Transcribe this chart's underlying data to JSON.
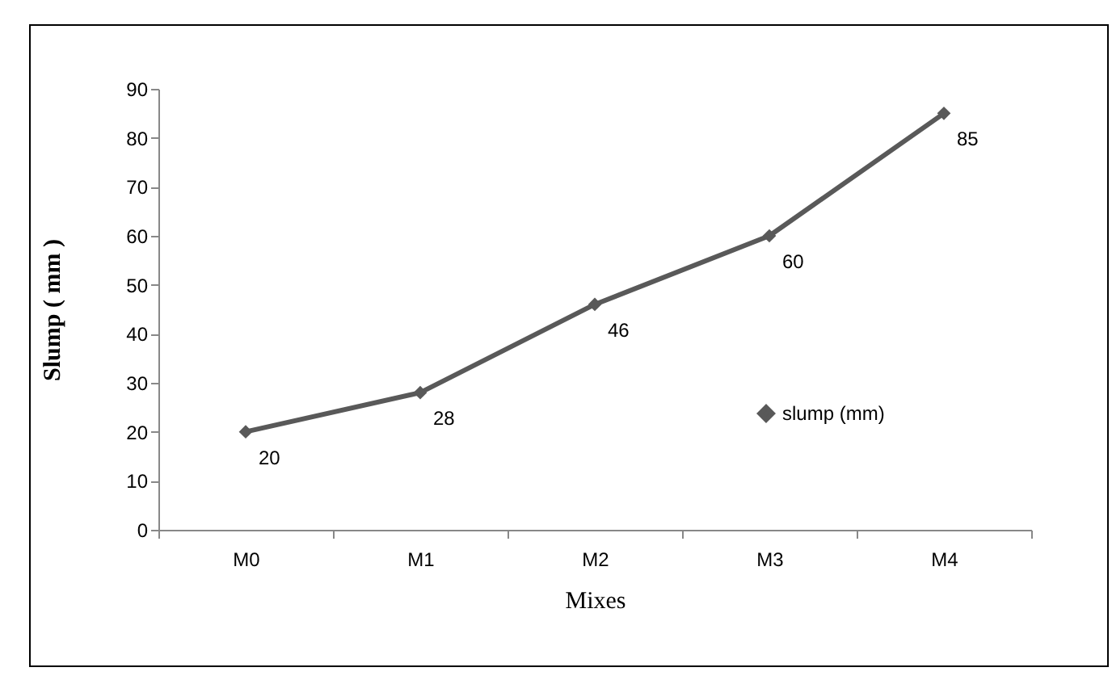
{
  "chart_data": {
    "type": "line",
    "xlabel": "Mixes",
    "ylabel": "Slump ( mm )",
    "categories": [
      "M0",
      "M1",
      "M2",
      "M3",
      "M4"
    ],
    "series": [
      {
        "name": "slump (mm)",
        "color": "#595959",
        "values": [
          20,
          28,
          46,
          60,
          85
        ]
      }
    ],
    "ylim": [
      0,
      90
    ],
    "yticks": [
      0,
      10,
      20,
      30,
      40,
      50,
      60,
      70,
      80,
      90
    ],
    "data_labels": true,
    "legend": "right",
    "marker": "diamond",
    "line_style": "solid",
    "grid": false
  }
}
